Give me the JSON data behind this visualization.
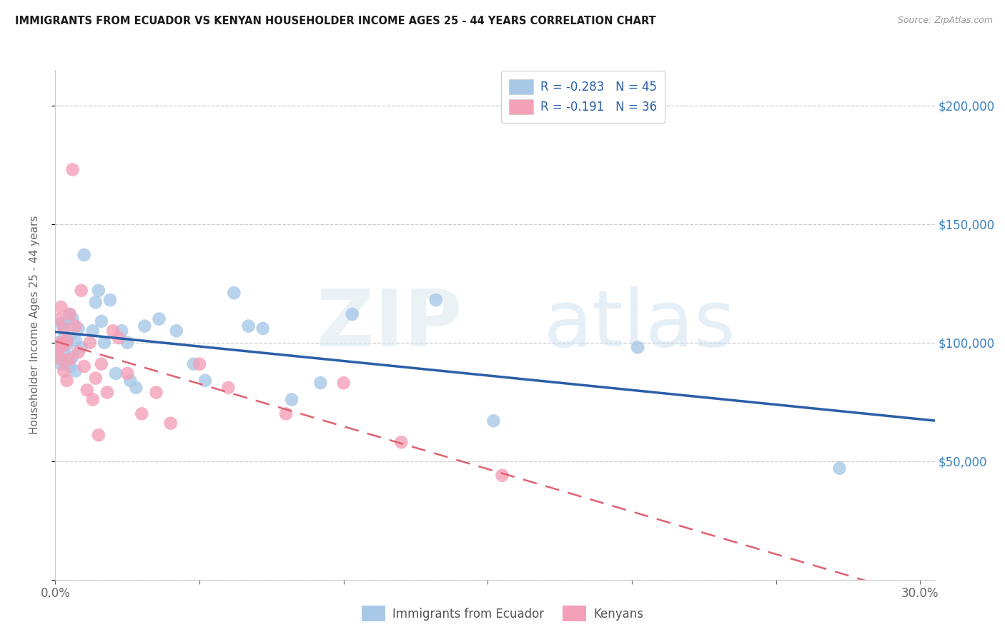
{
  "title": "IMMIGRANTS FROM ECUADOR VS KENYAN HOUSEHOLDER INCOME AGES 25 - 44 YEARS CORRELATION CHART",
  "source": "Source: ZipAtlas.com",
  "ylabel": "Householder Income Ages 25 - 44 years",
  "y_ticks": [
    0,
    50000,
    100000,
    150000,
    200000
  ],
  "y_tick_labels": [
    "",
    "$50,000",
    "$100,000",
    "$150,000",
    "$200,000"
  ],
  "xlim": [
    0.0,
    0.305
  ],
  "ylim": [
    0,
    215000
  ],
  "legend_r1": "R = -0.283   N = 45",
  "legend_r2": "R = -0.191   N = 36",
  "color_ecuador": "#a8c8e8",
  "color_kenya": "#f4a0b8",
  "line_color_ecuador": "#2a5fa8",
  "line_color_kenya": "#e06070",
  "line_color_right_axis": "#3a80c0",
  "background_color": "#ffffff",
  "ecuador_x": [
    0.001,
    0.001,
    0.002,
    0.002,
    0.003,
    0.003,
    0.003,
    0.004,
    0.004,
    0.005,
    0.005,
    0.005,
    0.006,
    0.006,
    0.007,
    0.007,
    0.008,
    0.009,
    0.01,
    0.013,
    0.014,
    0.015,
    0.016,
    0.017,
    0.019,
    0.021,
    0.023,
    0.025,
    0.026,
    0.028,
    0.031,
    0.036,
    0.042,
    0.048,
    0.052,
    0.062,
    0.067,
    0.072,
    0.082,
    0.092,
    0.103,
    0.132,
    0.152,
    0.202,
    0.272
  ],
  "ecuador_y": [
    100000,
    95000,
    108000,
    91000,
    102000,
    95000,
    108000,
    99000,
    92000,
    112000,
    90000,
    103000,
    110000,
    94000,
    101000,
    88000,
    106000,
    98000,
    137000,
    105000,
    117000,
    122000,
    109000,
    100000,
    118000,
    87000,
    105000,
    100000,
    84000,
    81000,
    107000,
    110000,
    105000,
    91000,
    84000,
    121000,
    107000,
    106000,
    76000,
    83000,
    112000,
    118000,
    67000,
    98000,
    47000
  ],
  "kenya_x": [
    0.001,
    0.001,
    0.002,
    0.002,
    0.002,
    0.003,
    0.003,
    0.003,
    0.004,
    0.004,
    0.005,
    0.005,
    0.006,
    0.007,
    0.008,
    0.009,
    0.01,
    0.011,
    0.012,
    0.013,
    0.014,
    0.015,
    0.016,
    0.018,
    0.02,
    0.022,
    0.025,
    0.03,
    0.035,
    0.04,
    0.05,
    0.06,
    0.08,
    0.1,
    0.12,
    0.155
  ],
  "kenya_y": [
    110000,
    97000,
    100000,
    115000,
    93000,
    106000,
    99000,
    88000,
    101000,
    84000,
    112000,
    93000,
    173000,
    107000,
    96000,
    122000,
    90000,
    80000,
    100000,
    76000,
    85000,
    61000,
    91000,
    79000,
    105000,
    102000,
    87000,
    70000,
    79000,
    66000,
    91000,
    81000,
    70000,
    83000,
    58000,
    44000
  ]
}
